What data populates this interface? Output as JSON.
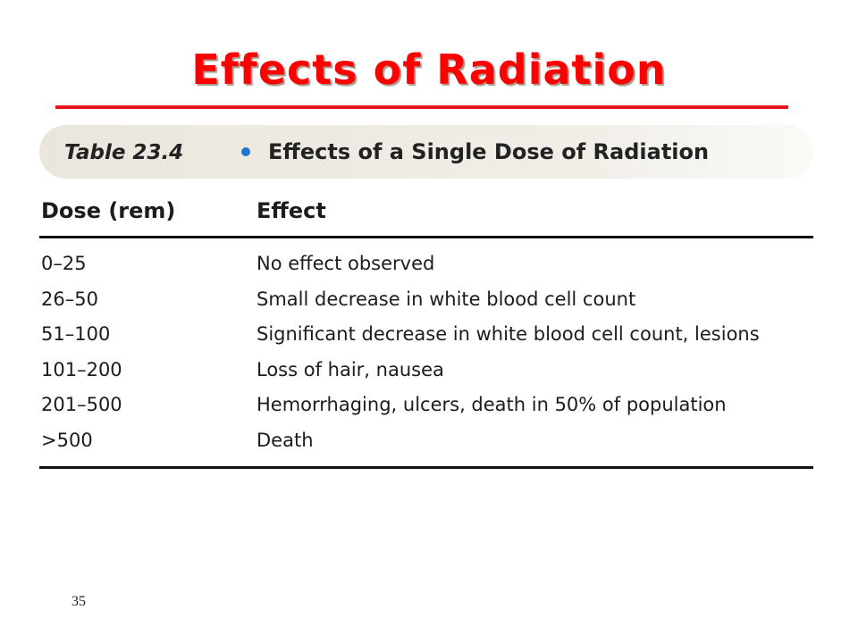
{
  "slide": {
    "title": "Effects of Radiation",
    "page_number": "35"
  },
  "colors": {
    "title": "#ff0000",
    "title_rule": "#e8141a",
    "bullet": "#1f77d0"
  },
  "table": {
    "number": "Table 23.4",
    "caption": "Effects of a Single Dose of Radiation",
    "headers": {
      "dose": "Dose (rem)",
      "effect": "Effect"
    },
    "rows": [
      {
        "dose": "0–25",
        "effect": "No effect observed"
      },
      {
        "dose": "26–50",
        "effect": "Small decrease in white blood cell count"
      },
      {
        "dose": "51–100",
        "effect": "Significant decrease in white blood cell count, lesions"
      },
      {
        "dose": "101–200",
        "effect": "Loss of hair, nausea"
      },
      {
        "dose": "201–500",
        "effect": "Hemorrhaging, ulcers, death in 50% of population"
      },
      {
        "dose": ">500",
        "effect": "Death"
      }
    ]
  }
}
